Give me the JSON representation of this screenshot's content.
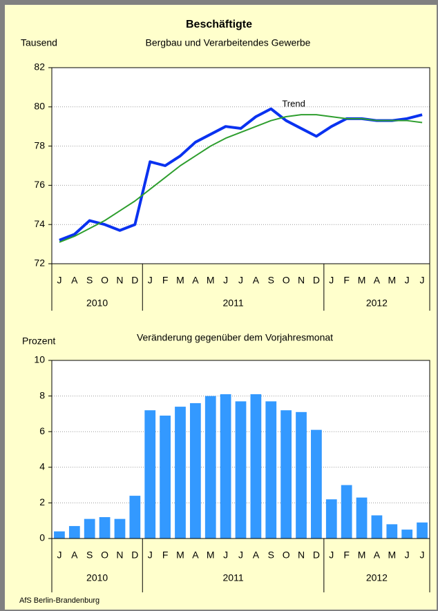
{
  "chart_data": [
    {
      "type": "line",
      "title": "Beschäftigte",
      "subtitle": "Bergbau und Verarbeitendes Gewerbe",
      "y_label": "Tausend",
      "groups": [
        {
          "label": "2010",
          "categories": [
            "J",
            "A",
            "S",
            "O",
            "N",
            "D"
          ]
        },
        {
          "label": "2011",
          "categories": [
            "J",
            "F",
            "M",
            "A",
            "M",
            "J",
            "J",
            "A",
            "S",
            "O",
            "N",
            "D"
          ]
        },
        {
          "label": "2012",
          "categories": [
            "J",
            "F",
            "M",
            "A",
            "M",
            "J",
            "J"
          ]
        }
      ],
      "series": [
        {
          "color": "#0a32f0",
          "values": [
            73.2,
            73.5,
            74.2,
            74.0,
            73.7,
            74.0,
            77.2,
            77.0,
            77.5,
            78.2,
            78.6,
            79.0,
            78.9,
            79.5,
            79.9,
            79.3,
            78.9,
            78.5,
            79.0,
            79.4,
            79.4,
            79.3,
            79.3,
            79.4,
            79.6
          ]
        },
        {
          "name": "Trend",
          "color": "#2e9e2e",
          "values": [
            73.1,
            73.4,
            73.8,
            74.2,
            74.7,
            75.2,
            75.8,
            76.4,
            77.0,
            77.5,
            78.0,
            78.4,
            78.7,
            79.0,
            79.3,
            79.5,
            79.6,
            79.6,
            79.5,
            79.4,
            79.4,
            79.3,
            79.3,
            79.3,
            79.2
          ]
        }
      ],
      "ylim": [
        72,
        82
      ],
      "yticks": [
        72,
        74,
        76,
        78,
        80,
        82
      ],
      "grid": true
    },
    {
      "type": "bar",
      "title": "Veränderung gegenüber dem Vorjahresmonat",
      "y_label": "Prozent",
      "color": "#3399ff",
      "groups": [
        {
          "label": "2010",
          "categories": [
            "J",
            "A",
            "S",
            "O",
            "N",
            "D"
          ]
        },
        {
          "label": "2011",
          "categories": [
            "J",
            "F",
            "M",
            "A",
            "M",
            "J",
            "J",
            "A",
            "S",
            "O",
            "N",
            "D"
          ]
        },
        {
          "label": "2012",
          "categories": [
            "J",
            "F",
            "M",
            "A",
            "M",
            "J",
            "J"
          ]
        }
      ],
      "values": [
        0.4,
        0.7,
        1.1,
        1.2,
        1.1,
        2.4,
        7.2,
        6.9,
        7.4,
        7.6,
        8.0,
        8.1,
        7.7,
        8.1,
        7.7,
        7.2,
        7.1,
        6.1,
        2.2,
        3.0,
        2.3,
        1.3,
        0.8,
        0.5,
        0.9
      ],
      "ylim": [
        0,
        10
      ],
      "yticks": [
        0,
        2,
        4,
        6,
        8,
        10
      ],
      "grid": true
    }
  ],
  "source": "AfS Berlin-Brandenburg"
}
